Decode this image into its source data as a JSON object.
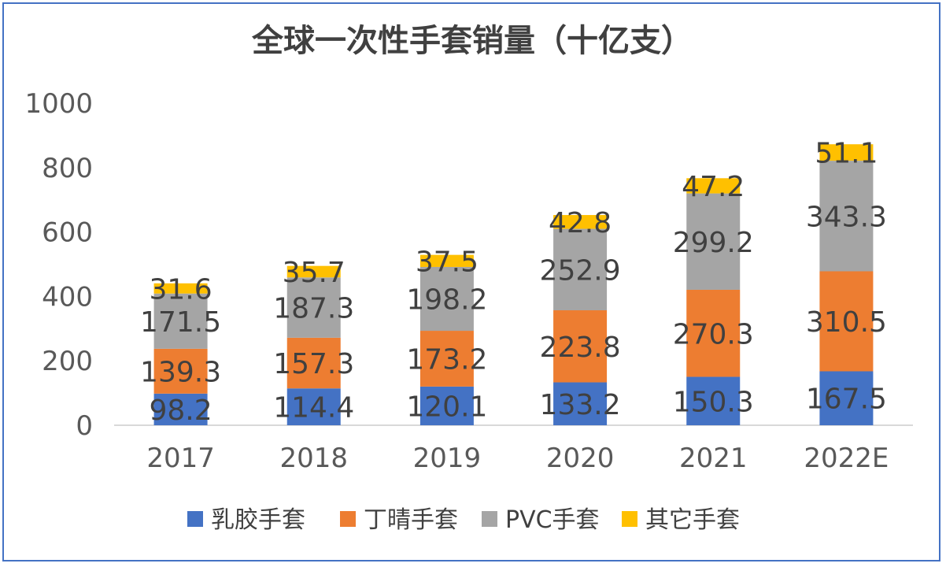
{
  "chart_data": {
    "type": "bar",
    "stacked": true,
    "title": "全球一次性手套销量（十亿支）",
    "categories": [
      "2017",
      "2018",
      "2019",
      "2020",
      "2021",
      "2022E"
    ],
    "series": [
      {
        "name": "乳胶手套",
        "color": "#4472C4",
        "values": [
          98.2,
          114.4,
          120.1,
          133.2,
          150.3,
          167.5
        ]
      },
      {
        "name": "丁晴手套",
        "color": "#ED7D31",
        "values": [
          139.3,
          157.3,
          173.2,
          223.8,
          270.3,
          310.5
        ]
      },
      {
        "name": "PVC手套",
        "color": "#A5A5A5",
        "values": [
          171.5,
          187.3,
          198.2,
          252.9,
          299.2,
          343.3
        ]
      },
      {
        "name": "其它手套",
        "color": "#FFC000",
        "values": [
          31.6,
          35.7,
          37.5,
          42.8,
          47.2,
          51.1
        ]
      }
    ],
    "ylim": [
      0,
      1000
    ],
    "yticks": [
      "0",
      "200",
      "400",
      "600",
      "800",
      "1000"
    ],
    "grid": false,
    "legend_position": "bottom"
  }
}
